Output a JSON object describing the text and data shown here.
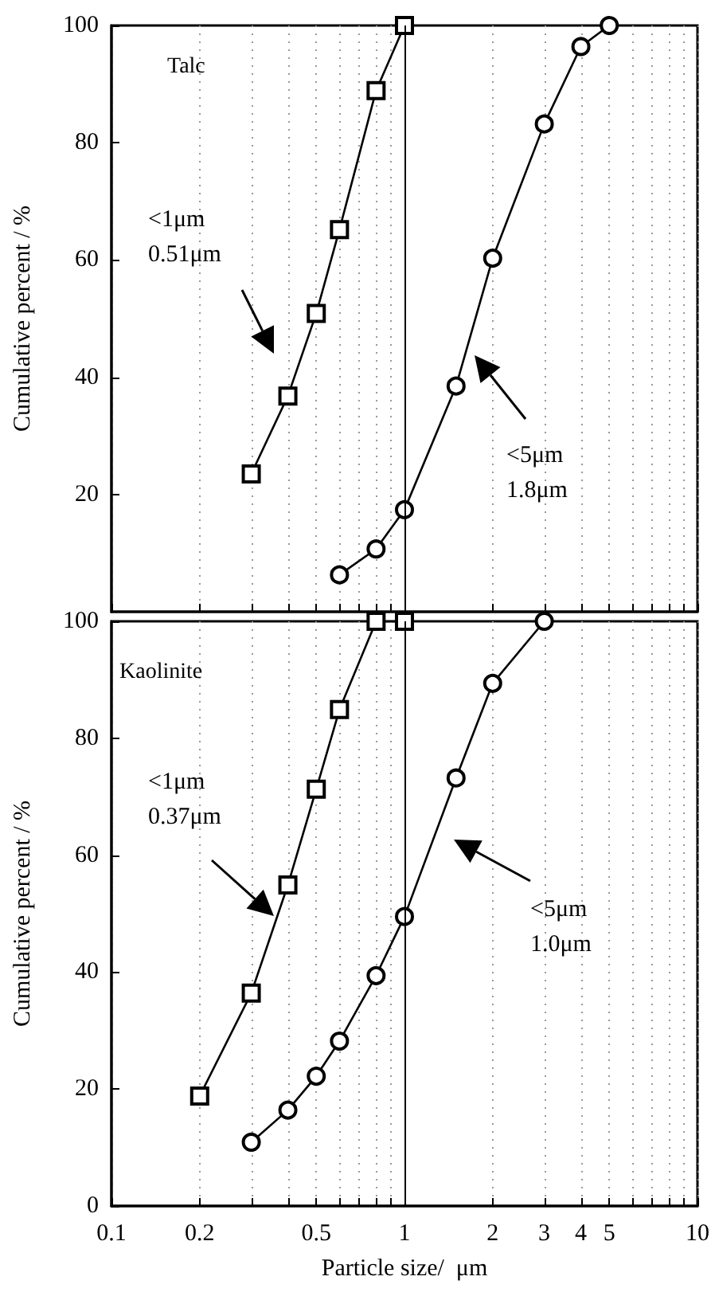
{
  "chart_data": [
    {
      "type": "line",
      "title": "Talc",
      "ylabel": "Cumulative percent / %",
      "log": "x",
      "xlim": [
        0.1,
        10
      ],
      "ylim": [
        0,
        100
      ],
      "xticks": [
        0.1,
        0.2,
        {
          "value": 0.3,
          "label": null
        },
        {
          "value": 0.4,
          "label": null
        },
        0.5,
        {
          "value": 0.6,
          "label": null
        },
        {
          "value": 0.7,
          "label": null
        },
        {
          "value": 0.8,
          "label": null
        },
        {
          "value": 0.9,
          "label": null
        },
        1,
        2,
        3,
        4,
        5,
        {
          "value": 6,
          "label": null
        },
        {
          "value": 7,
          "label": null
        },
        {
          "value": 8,
          "label": null
        },
        {
          "value": 9,
          "label": null
        },
        10
      ],
      "yticks": [
        20,
        40,
        60,
        80,
        100
      ],
      "tick_labels": "y",
      "grid": "x",
      "ref_lines": [
        {
          "axis": "x",
          "value": 1,
          "color": "#000000",
          "line_style": "solid"
        }
      ],
      "series": [
        {
          "color": "#000000",
          "marker": "square",
          "x": [
            0.3,
            0.4,
            0.5,
            0.6,
            0.8,
            1
          ],
          "values": [
            23.5,
            36.8,
            50.9,
            65.2,
            88.9,
            100
          ]
        },
        {
          "color": "#000000",
          "marker": "circle",
          "x": [
            0.6,
            0.8,
            1,
            1.5,
            2,
            3,
            4,
            5
          ],
          "values": [
            6.3,
            10.7,
            17.4,
            38.5,
            60.3,
            83.2,
            96.4,
            100
          ]
        }
      ],
      "annotations": [
        "<1μm\n0.51μm",
        "<5μm\n1.8μm"
      ]
    },
    {
      "type": "line",
      "title": "Kaolinite",
      "xlabel": "Particle size/  μm",
      "ylabel": "Cumulative percent / %",
      "log": "x",
      "xlim": [
        0.1,
        10
      ],
      "ylim": [
        0,
        100
      ],
      "xticks": [
        0.1,
        0.2,
        {
          "value": 0.3,
          "label": null
        },
        {
          "value": 0.4,
          "label": null
        },
        0.5,
        {
          "value": 0.6,
          "label": null
        },
        {
          "value": 0.7,
          "label": null
        },
        {
          "value": 0.8,
          "label": null
        },
        {
          "value": 0.9,
          "label": null
        },
        1,
        2,
        3,
        4,
        5,
        {
          "value": 6,
          "label": null
        },
        {
          "value": 7,
          "label": null
        },
        {
          "value": 8,
          "label": null
        },
        {
          "value": 9,
          "label": null
        },
        10
      ],
      "yticks": [
        0,
        20,
        40,
        60,
        80,
        100
      ],
      "grid": "x",
      "ref_lines": [
        {
          "axis": "x",
          "value": 1,
          "color": "#000000",
          "line_style": "solid"
        }
      ],
      "series": [
        {
          "color": "#000000",
          "marker": "square",
          "x": [
            0.2,
            0.3,
            0.4,
            0.5,
            0.6,
            0.8,
            1
          ],
          "values": [
            18.8,
            36.4,
            54.9,
            71.3,
            84.9,
            100,
            100
          ]
        },
        {
          "color": "#000000",
          "marker": "circle",
          "x": [
            0.3,
            0.4,
            0.5,
            0.6,
            0.8,
            1,
            1.5,
            2,
            3
          ],
          "values": [
            10.9,
            16.4,
            22.2,
            28.2,
            39.4,
            49.5,
            73.2,
            89.4,
            100
          ]
        }
      ],
      "annotations": [
        "<1μm\n0.37μm",
        "<5μm\n1.0μm"
      ]
    }
  ]
}
